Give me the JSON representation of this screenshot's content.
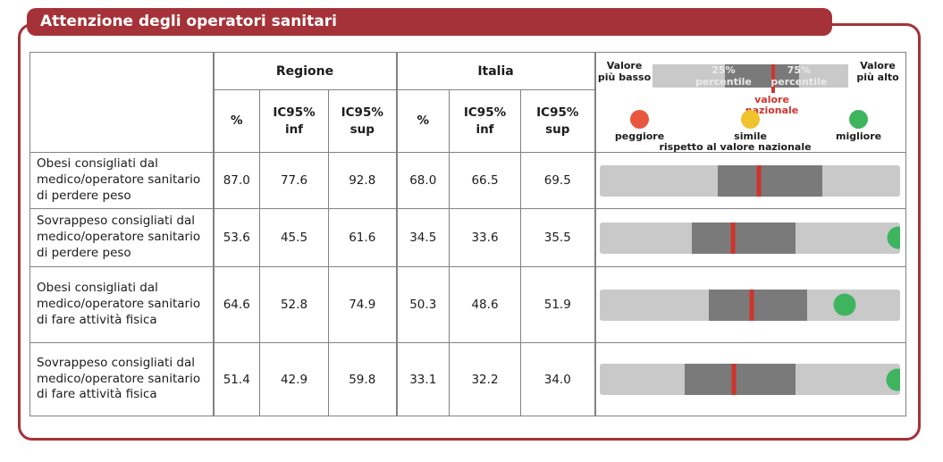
{
  "title": "Attenzione degli operatori sanitari",
  "colors": {
    "frame": "#a53238",
    "national_line": "#d0342c",
    "worse_dot": "#e8563e",
    "similar_dot": "#efc32e",
    "better_dot": "#3fb45f",
    "bar_light": "#c9c9c9",
    "bar_dark": "#7a7a7a"
  },
  "table": {
    "group_headers": {
      "regione": "Regione",
      "italia": "Italia"
    },
    "subheaders": {
      "pct": "%",
      "inf": "IC95%\ninf",
      "sup": "IC95%\nsup"
    }
  },
  "legend": {
    "low": "Valore\npiù basso",
    "high": "Valore\npiù alto",
    "p25": "25%\npercentile",
    "p75": "75%\npercentile",
    "national": "valore\nnazionale",
    "worse": "peggiore",
    "similar": "simile",
    "better": "migliore",
    "vs_national": "rispetto al valore nazionale"
  },
  "rows": [
    {
      "label": "Obesi consigliati dal medico/operatore sanitario di perdere peso",
      "regione": {
        "pct": "87.0",
        "inf": "77.6",
        "sup": "92.8"
      },
      "italia": {
        "pct": "68.0",
        "inf": "66.5",
        "sup": "69.5"
      },
      "bar": {
        "box_start": 0.394,
        "box_end": 0.741,
        "line": 0.529,
        "dot": null,
        "dot_color": null
      }
    },
    {
      "label": "Sovrappeso consigliati dal medico/operatore sanitario di perdere peso",
      "regione": {
        "pct": "53.6",
        "inf": "45.5",
        "sup": "61.6"
      },
      "italia": {
        "pct": "34.5",
        "inf": "33.6",
        "sup": "35.5"
      },
      "bar": {
        "box_start": 0.306,
        "box_end": 0.653,
        "line": 0.444,
        "dot": 0.994,
        "dot_color": "#3fb45f"
      }
    },
    {
      "label": "Obesi consigliati dal medico/operatore sanitario di fare attività fisica",
      "regione": {
        "pct": "64.6",
        "inf": "52.8",
        "sup": "74.9"
      },
      "italia": {
        "pct": "50.3",
        "inf": "48.6",
        "sup": "51.9"
      },
      "bar": {
        "box_start": 0.364,
        "box_end": 0.691,
        "line": 0.506,
        "dot": 0.815,
        "dot_color": "#3fb45f"
      }
    },
    {
      "label": "Sovrappeso consigliati dal medico/operatore sanitario di fare attività fisica",
      "regione": {
        "pct": "51.4",
        "inf": "42.9",
        "sup": "59.8"
      },
      "italia": {
        "pct": "33.1",
        "inf": "32.2",
        "sup": "34.0"
      },
      "bar": {
        "box_start": 0.285,
        "box_end": 0.653,
        "line": 0.447,
        "dot": 0.99,
        "dot_color": "#3fb45f"
      }
    }
  ],
  "chart_data": {
    "type": "table",
    "title": "Attenzione degli operatori sanitari",
    "column_groups": [
      "Regione",
      "Italia"
    ],
    "columns": [
      "%",
      "IC95% inf",
      "IC95% sup",
      "%",
      "IC95% inf",
      "IC95% sup"
    ],
    "legend": [
      "Valore più basso",
      "25% percentile",
      "75% percentile",
      "Valore più alto",
      "valore nazionale",
      "peggiore",
      "simile",
      "migliore",
      "rispetto al valore nazionale"
    ],
    "rows": [
      {
        "label": "Obesi consigliati dal medico/operatore sanitario di perdere peso",
        "regione": [
          87.0,
          77.6,
          92.8
        ],
        "italia": [
          68.0,
          66.5,
          69.5
        ],
        "marker": null
      },
      {
        "label": "Sovrappeso consigliati dal medico/operatore sanitario di perdere peso",
        "regione": [
          53.6,
          45.5,
          61.6
        ],
        "italia": [
          34.5,
          33.6,
          35.5
        ],
        "marker": "migliore"
      },
      {
        "label": "Obesi consigliati dal medico/operatore sanitario di fare attività fisica",
        "regione": [
          64.6,
          52.8,
          74.9
        ],
        "italia": [
          50.3,
          48.6,
          51.9
        ],
        "marker": "migliore"
      },
      {
        "label": "Sovrappeso consigliati dal medico/operatore sanitario di fare attività fisica",
        "regione": [
          51.4,
          42.9,
          59.8
        ],
        "italia": [
          33.1,
          32.2,
          34.0
        ],
        "marker": "migliore"
      }
    ]
  }
}
